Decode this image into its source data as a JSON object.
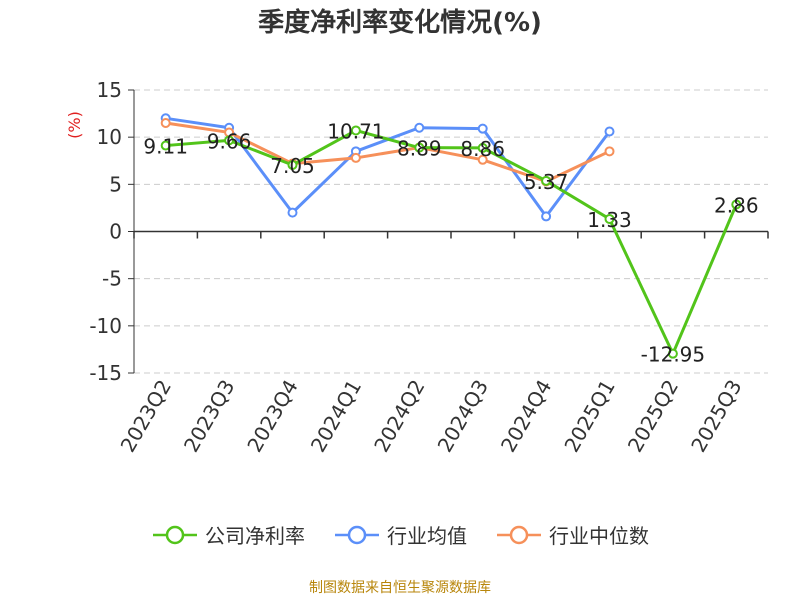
{
  "title": "季度净利率变化情况(%)",
  "footer": "制图数据来自恒生聚源数据库",
  "chart_data": {
    "type": "line",
    "title": "季度净利率变化情况(%)",
    "ylabel": "(%)",
    "xlabel": "",
    "categories": [
      "2023Q2",
      "2023Q3",
      "2023Q4",
      "2024Q1",
      "2024Q2",
      "2024Q3",
      "2024Q4",
      "2025Q1",
      "2025Q2",
      "2025Q3"
    ],
    "ylim": [
      -15,
      15
    ],
    "yticks": [
      15,
      10,
      5,
      0,
      -5,
      -10,
      -15
    ],
    "grid": true,
    "legend_position": "bottom",
    "series": [
      {
        "name": "公司净利率",
        "color": "#52c41a",
        "values": [
          9.11,
          9.66,
          7.05,
          10.71,
          8.89,
          8.86,
          5.37,
          1.33,
          -12.95,
          2.86
        ],
        "labels": [
          "9.11",
          "9.66",
          "7.05",
          "10.71",
          "8.89",
          "8.86",
          "5.37",
          "1.33",
          "-12.95",
          "2.86"
        ]
      },
      {
        "name": "行业均值",
        "color": "#5b8ff9",
        "values": [
          12.0,
          11.0,
          2.0,
          8.5,
          11.0,
          10.9,
          1.6,
          10.6,
          null,
          null
        ]
      },
      {
        "name": "行业中位数",
        "color": "#f6905a",
        "values": [
          11.5,
          10.5,
          7.2,
          7.8,
          8.9,
          7.6,
          5.3,
          8.5,
          null,
          null
        ]
      }
    ]
  }
}
